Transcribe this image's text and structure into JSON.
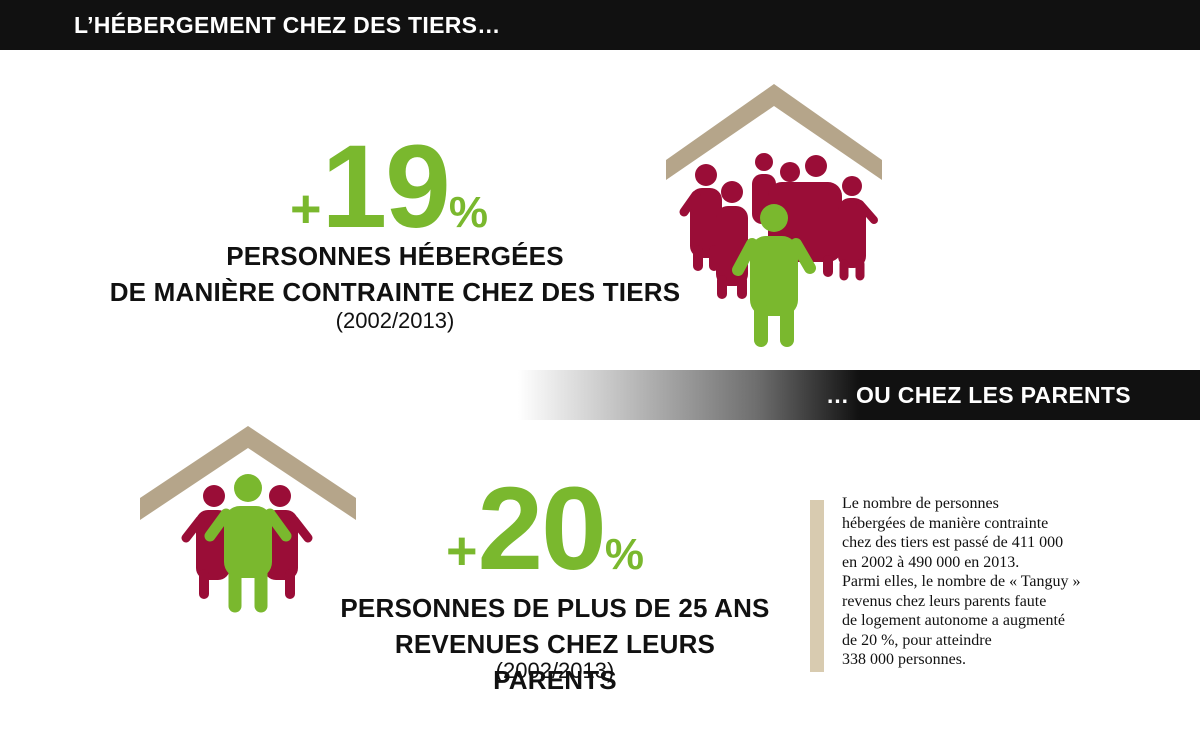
{
  "top_banner": {
    "title": "L’HÉBERGEMENT CHEZ DES TIERS…"
  },
  "stat1": {
    "plus": "+",
    "value": "19",
    "unit": "%",
    "caption_line1": "PERSONNES HÉBERGÉES",
    "caption_line2": "DE MANIÈRE CONTRAINTE CHEZ DES TIERS",
    "period": "(2002/2013)"
  },
  "mid_banner": {
    "title": "… OU CHEZ LES PARENTS"
  },
  "stat2": {
    "plus": "+",
    "value": "20",
    "unit": "%",
    "caption_line1": "PERSONNES DE PLUS DE 25 ANS",
    "caption_line2": "REVENUES CHEZ LEURS PARENTS",
    "period": "(2002/2013)"
  },
  "side_note": {
    "lines": [
      "Le nombre de personnes",
      "hébergées de manière contrainte",
      "chez des tiers est passé de 411 000",
      "en 2002 à 490 000 en 2013.",
      "Parmi elles, le nombre de « Tanguy »",
      "revenus chez leurs parents faute",
      "de logement autonome a augmenté",
      "de 20 %, pour atteindre",
      "338 000 personnes."
    ]
  },
  "colors": {
    "accent_green": "#7ab82e",
    "crimson": "#9a0d37",
    "roof_tan": "#b5a58a",
    "banner_black": "#111111",
    "note_bar": "#d8cbb0"
  },
  "icons": {
    "house_group": "house-with-crowd-icon",
    "house_family": "house-with-family-icon"
  }
}
